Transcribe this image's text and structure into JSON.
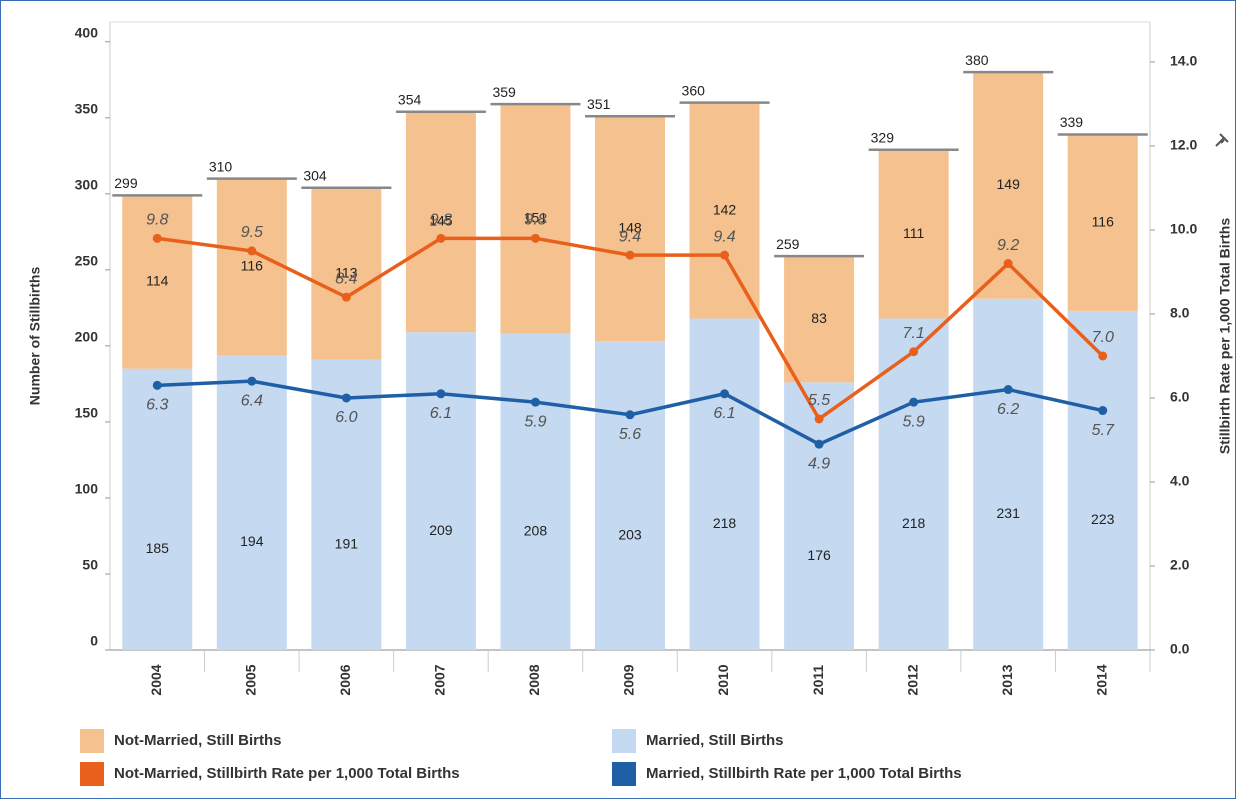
{
  "chart_data": {
    "type": "stacked-bar-line",
    "categories": [
      "2004",
      "2005",
      "2006",
      "2007",
      "2008",
      "2009",
      "2010",
      "2011",
      "2012",
      "2013",
      "2014"
    ],
    "ylabel": "Number of Stillbirths",
    "y2label": "Stillbirth Rate per 1,000 Total Births",
    "ylim": [
      0,
      413
    ],
    "yticks": [
      0,
      50,
      100,
      150,
      200,
      250,
      300,
      350,
      400
    ],
    "y2lim": [
      0,
      14.95
    ],
    "y2ticks": [
      {
        "value": 0,
        "label": "0.0"
      },
      {
        "value": 2,
        "label": "2.0"
      },
      {
        "value": 4,
        "label": "4.0"
      },
      {
        "value": 6,
        "label": "6.0"
      },
      {
        "value": 8,
        "label": "8.0"
      },
      {
        "value": 10,
        "label": "10.0"
      },
      {
        "value": 12,
        "label": "12.0"
      },
      {
        "value": 14,
        "label": "14.0"
      }
    ],
    "totals": [
      299,
      310,
      304,
      354,
      359,
      351,
      360,
      259,
      329,
      380,
      339
    ],
    "series": [
      {
        "name": "Married, Still Births",
        "kind": "bar",
        "color": "#c5d9f1",
        "values": [
          185,
          194,
          191,
          209,
          208,
          203,
          218,
          176,
          218,
          231,
          223
        ]
      },
      {
        "name": "Not-Married, Still Births",
        "kind": "bar",
        "color": "#f5c18f",
        "values": [
          114,
          116,
          113,
          145,
          151,
          148,
          142,
          83,
          111,
          149,
          116
        ]
      },
      {
        "name": "Married, Stillbirth Rate per 1,000 Total Births",
        "kind": "line",
        "axis": "y2",
        "color": "#1f5fa6",
        "values": [
          6.3,
          6.4,
          6.0,
          6.1,
          5.9,
          5.6,
          6.1,
          4.9,
          5.9,
          6.2,
          5.7
        ],
        "value_labels": [
          "6.3",
          "6.4",
          "6.0",
          "6.1",
          "5.9",
          "5.6",
          "6.1",
          "4.9",
          "5.9",
          "6.2",
          "5.7"
        ]
      },
      {
        "name": "Not-Married, Stillbirth Rate per 1,000 Total Births",
        "kind": "line",
        "axis": "y2",
        "color": "#e8601c",
        "values": [
          9.8,
          9.5,
          8.4,
          9.8,
          9.8,
          9.4,
          9.4,
          5.5,
          7.1,
          9.2,
          7.0
        ],
        "value_labels": [
          "9.8",
          "9.5",
          "8.4",
          "9.8",
          "9.8",
          "9.4",
          "9.4",
          "5.5",
          "7.1",
          "9.2",
          "7.0"
        ]
      }
    ]
  }
}
